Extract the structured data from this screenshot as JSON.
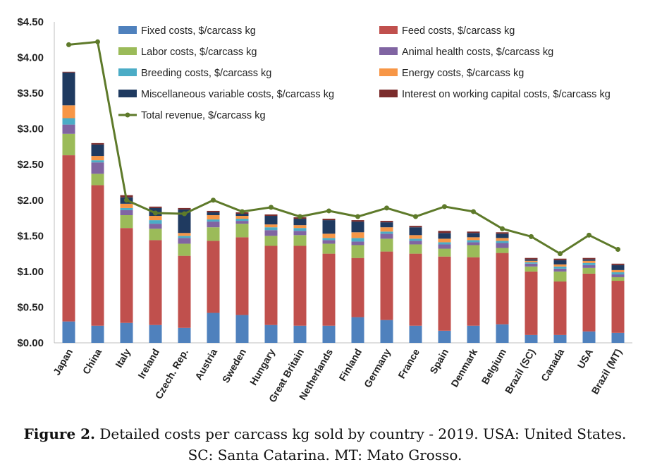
{
  "chart_data": {
    "type": "bar",
    "stacked": true,
    "categories": [
      "Japan",
      "China",
      "Italy",
      "Ireland",
      "Czech. Rep.",
      "Austria",
      "Sweden",
      "Hungary",
      "Great Britain",
      "Netherlands",
      "Finland",
      "Germany",
      "France",
      "Spain",
      "Denmark",
      "Belgium",
      "Brazil (SC)",
      "Canada",
      "USA",
      "Brazil (MT)"
    ],
    "ylim": [
      0,
      4.5
    ],
    "y_ticks": [
      "$0.00",
      "$0.50",
      "$1.00",
      "$1.50",
      "$2.00",
      "$2.50",
      "$3.00",
      "$3.50",
      "$4.00",
      "$4.50"
    ],
    "grid": false,
    "legend_position": "top",
    "series": [
      {
        "name": "Fixed costs, $/carcass kg",
        "color": "#4F81BD",
        "values": [
          0.3,
          0.24,
          0.28,
          0.25,
          0.21,
          0.42,
          0.39,
          0.25,
          0.24,
          0.24,
          0.36,
          0.32,
          0.24,
          0.17,
          0.24,
          0.26,
          0.11,
          0.11,
          0.16,
          0.14
        ]
      },
      {
        "name": "Feed costs, $/carcass kg",
        "color": "#C0504D",
        "values": [
          2.33,
          1.97,
          1.33,
          1.19,
          1.01,
          1.01,
          1.09,
          1.11,
          1.12,
          1.01,
          0.83,
          0.96,
          1.01,
          1.04,
          0.96,
          1.0,
          0.89,
          0.75,
          0.81,
          0.73
        ]
      },
      {
        "name": "Labor costs, $/carcass kg",
        "color": "#9BBB59",
        "values": [
          0.3,
          0.16,
          0.18,
          0.16,
          0.17,
          0.19,
          0.19,
          0.14,
          0.15,
          0.14,
          0.18,
          0.18,
          0.13,
          0.11,
          0.17,
          0.07,
          0.07,
          0.14,
          0.08,
          0.05
        ]
      },
      {
        "name": "Animal health costs, $/carcass kg",
        "color": "#8064A2",
        "values": [
          0.13,
          0.16,
          0.07,
          0.07,
          0.08,
          0.08,
          0.04,
          0.08,
          0.06,
          0.05,
          0.05,
          0.07,
          0.05,
          0.06,
          0.04,
          0.07,
          0.04,
          0.04,
          0.04,
          0.04
        ]
      },
      {
        "name": "Breeding costs, $/carcass kg",
        "color": "#4BACC6",
        "values": [
          0.09,
          0.03,
          0.03,
          0.05,
          0.03,
          0.03,
          0.03,
          0.04,
          0.04,
          0.03,
          0.05,
          0.03,
          0.03,
          0.03,
          0.03,
          0.03,
          0.02,
          0.03,
          0.03,
          0.03
        ]
      },
      {
        "name": "Energy costs, $/carcass kg",
        "color": "#F79646",
        "values": [
          0.18,
          0.06,
          0.06,
          0.06,
          0.04,
          0.06,
          0.04,
          0.04,
          0.04,
          0.06,
          0.08,
          0.06,
          0.05,
          0.05,
          0.04,
          0.04,
          0.02,
          0.03,
          0.03,
          0.03
        ]
      },
      {
        "name": "Miscellaneous variable costs, $/carcass kg",
        "color": "#1F3A60",
        "values": [
          0.46,
          0.16,
          0.09,
          0.11,
          0.33,
          0.04,
          0.03,
          0.12,
          0.09,
          0.19,
          0.15,
          0.07,
          0.11,
          0.08,
          0.06,
          0.06,
          0.02,
          0.06,
          0.02,
          0.07
        ]
      },
      {
        "name": "Interest on working capital costs, $/carcass kg",
        "color": "#7B2C2C",
        "values": [
          0.01,
          0.02,
          0.03,
          0.02,
          0.02,
          0.02,
          0.02,
          0.02,
          0.02,
          0.02,
          0.02,
          0.02,
          0.02,
          0.03,
          0.02,
          0.02,
          0.02,
          0.02,
          0.02,
          0.02
        ]
      }
    ],
    "line_series": {
      "name": "Total revenue, $/carcass kg",
      "color": "#5E7A2A",
      "values": [
        4.18,
        4.22,
        2.0,
        1.82,
        1.81,
        2.0,
        1.84,
        1.9,
        1.77,
        1.85,
        1.77,
        1.89,
        1.77,
        1.91,
        1.84,
        1.6,
        1.49,
        1.25,
        1.51,
        1.31
      ]
    }
  },
  "caption": {
    "label": "Figure 2.",
    "text": "Detailed costs per carcass kg sold by country - 2019. USA: United States. SC: Santa Catarina. MT: Mato Grosso."
  }
}
